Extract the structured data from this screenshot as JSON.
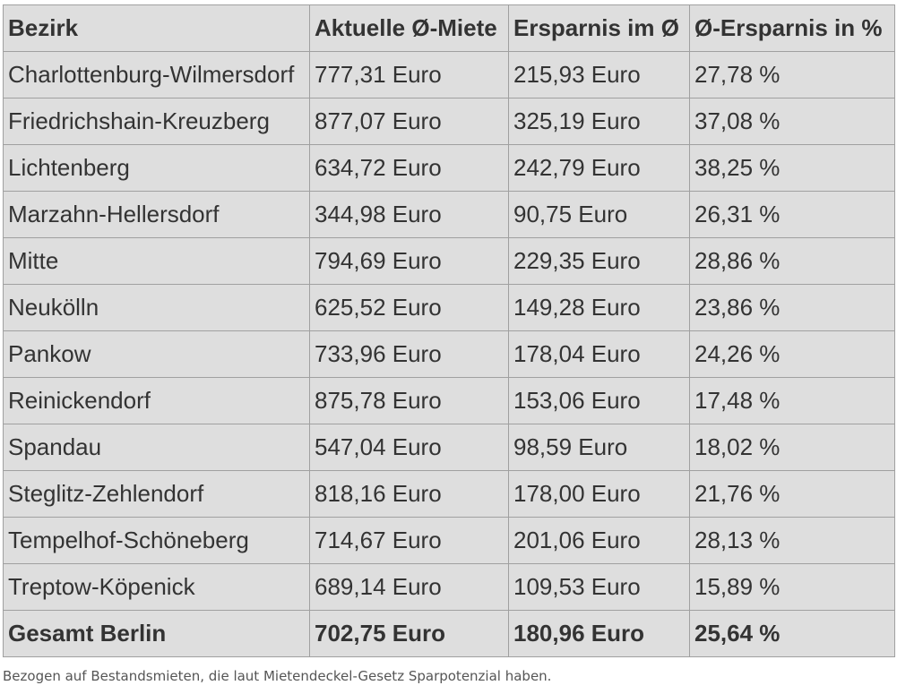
{
  "table": {
    "headers": [
      "Bezirk",
      "Aktuelle Ø-Miete",
      "Ersparnis im Ø",
      "Ø-Ersparnis in %"
    ],
    "rows": [
      [
        "Charlottenburg-Wilmersdorf",
        "777,31 Euro",
        "215,93 Euro",
        "27,78 %"
      ],
      [
        "Friedrichshain-Kreuzberg",
        "877,07 Euro",
        "325,19 Euro",
        "37,08 %"
      ],
      [
        "Lichtenberg",
        "634,72 Euro",
        "242,79 Euro",
        "38,25 %"
      ],
      [
        "Marzahn-Hellersdorf",
        "344,98 Euro",
        "90,75 Euro",
        "26,31 %"
      ],
      [
        "Mitte",
        "794,69 Euro",
        "229,35 Euro",
        "28,86 %"
      ],
      [
        "Neukölln",
        "625,52 Euro",
        "149,28 Euro",
        "23,86 %"
      ],
      [
        "Pankow",
        "733,96 Euro",
        "178,04 Euro",
        "24,26 %"
      ],
      [
        "Reinickendorf",
        "875,78 Euro",
        "153,06 Euro",
        "17,48 %"
      ],
      [
        "Spandau",
        "547,04 Euro",
        "98,59 Euro",
        "18,02 %"
      ],
      [
        "Steglitz-Zehlendorf",
        "818,16 Euro",
        "178,00 Euro",
        "21,76 %"
      ],
      [
        "Tempelhof-Schöneberg",
        "714,67 Euro",
        "201,06 Euro",
        "28,13 %"
      ],
      [
        "Treptow-Köpenick",
        "689,14 Euro",
        "109,53 Euro",
        "15,89 %"
      ]
    ],
    "total": [
      "Gesamt Berlin",
      "702,75 Euro",
      "180,96 Euro",
      "25,64 %"
    ]
  },
  "note": "Bezogen auf Bestandsmieten, die laut Mietendeckel-Gesetz Sparpotenzial haben."
}
